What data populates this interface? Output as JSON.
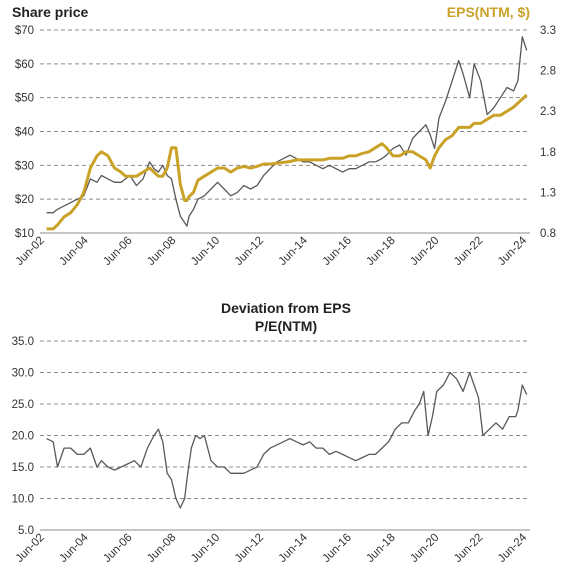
{
  "chart_data": [
    {
      "type": "line",
      "title": "Share price",
      "secondary_title": "EPS(NTM, $)",
      "ylim": [
        10,
        70
      ],
      "yticks": [
        "$10",
        "$20",
        "$30",
        "$40",
        "$50",
        "$60",
        "$70"
      ],
      "y2lim": [
        0.8,
        3.3
      ],
      "y2ticks": [
        "0.8",
        "1.3",
        "1.8",
        "2.3",
        "2.8",
        "3.3"
      ],
      "xticks": [
        "Jun-02",
        "Jun-04",
        "Jun-06",
        "Jun-08",
        "Jun-10",
        "Jun-12",
        "Jun-14",
        "Jun-16",
        "Jun-18",
        "Jun-20",
        "Jun-22",
        "Jun-24"
      ],
      "grid": true,
      "series": [
        {
          "axis": "left",
          "color": "#595959",
          "x": [
            2002.5,
            2002.8,
            2003.0,
            2003.3,
            2003.6,
            2003.9,
            2004.2,
            2004.5,
            2004.8,
            2005.0,
            2005.3,
            2005.6,
            2005.9,
            2006.1,
            2006.3,
            2006.6,
            2006.9,
            2007.2,
            2007.4,
            2007.6,
            2007.8,
            2008.0,
            2008.2,
            2008.4,
            2008.6,
            2008.8,
            2008.9,
            2009.0,
            2009.2,
            2009.4,
            2009.7,
            2010.0,
            2010.3,
            2010.6,
            2010.9,
            2011.2,
            2011.5,
            2011.8,
            2012.1,
            2012.4,
            2012.7,
            2013.0,
            2013.3,
            2013.6,
            2013.9,
            2014.2,
            2014.5,
            2014.8,
            2015.1,
            2015.4,
            2015.7,
            2016.0,
            2016.3,
            2016.6,
            2016.9,
            2017.2,
            2017.5,
            2017.8,
            2018.0,
            2018.3,
            2018.6,
            2018.9,
            2019.2,
            2019.5,
            2019.8,
            2020.0,
            2020.2,
            2020.4,
            2020.7,
            2021.0,
            2021.3,
            2021.5,
            2021.8,
            2022.0,
            2022.3,
            2022.6,
            2022.9,
            2023.2,
            2023.5,
            2023.8,
            2024.0,
            2024.2,
            2024.4
          ],
          "values": [
            16,
            16,
            17,
            18,
            19,
            20,
            21,
            26,
            25,
            27,
            26,
            25,
            25,
            26,
            27,
            24,
            26,
            31,
            29,
            28,
            30,
            27,
            26,
            20,
            15,
            13,
            12,
            15,
            17,
            20,
            21,
            23,
            25,
            23,
            21,
            22,
            24,
            23,
            24,
            27,
            29,
            31,
            32,
            33,
            32,
            31,
            31,
            30,
            29,
            30,
            29,
            28,
            29,
            29,
            30,
            31,
            31,
            32,
            33,
            35,
            36,
            33,
            38,
            40,
            42,
            39,
            35,
            44,
            49,
            55,
            61,
            57,
            50,
            60,
            55,
            45,
            47,
            50,
            53,
            52,
            55,
            68,
            64
          ]
        },
        {
          "axis": "right",
          "color": "#C9A227",
          "x": [
            2002.5,
            2002.8,
            2003.0,
            2003.3,
            2003.6,
            2003.9,
            2004.2,
            2004.5,
            2004.8,
            2005.0,
            2005.3,
            2005.6,
            2005.9,
            2006.1,
            2006.3,
            2006.6,
            2006.9,
            2007.2,
            2007.4,
            2007.6,
            2007.8,
            2008.0,
            2008.2,
            2008.4,
            2008.6,
            2008.8,
            2008.9,
            2009.0,
            2009.2,
            2009.4,
            2009.7,
            2010.0,
            2010.3,
            2010.6,
            2010.9,
            2011.2,
            2011.5,
            2011.8,
            2012.1,
            2012.4,
            2012.7,
            2013.0,
            2013.3,
            2013.6,
            2013.9,
            2014.2,
            2014.5,
            2014.8,
            2015.1,
            2015.4,
            2015.7,
            2016.0,
            2016.3,
            2016.6,
            2016.9,
            2017.2,
            2017.5,
            2017.8,
            2018.0,
            2018.3,
            2018.6,
            2018.9,
            2019.2,
            2019.5,
            2019.8,
            2020.0,
            2020.2,
            2020.4,
            2020.7,
            2021.0,
            2021.3,
            2021.5,
            2021.8,
            2022.0,
            2022.3,
            2022.6,
            2022.9,
            2023.2,
            2023.5,
            2023.8,
            2024.0,
            2024.2,
            2024.4
          ],
          "values": [
            0.85,
            0.85,
            0.9,
            1.0,
            1.05,
            1.15,
            1.3,
            1.6,
            1.75,
            1.8,
            1.75,
            1.6,
            1.55,
            1.5,
            1.5,
            1.5,
            1.55,
            1.6,
            1.55,
            1.5,
            1.5,
            1.6,
            1.85,
            1.85,
            1.4,
            1.2,
            1.2,
            1.25,
            1.3,
            1.45,
            1.5,
            1.55,
            1.6,
            1.6,
            1.55,
            1.6,
            1.62,
            1.6,
            1.62,
            1.65,
            1.65,
            1.66,
            1.67,
            1.68,
            1.7,
            1.7,
            1.7,
            1.7,
            1.7,
            1.72,
            1.72,
            1.72,
            1.75,
            1.75,
            1.78,
            1.8,
            1.85,
            1.9,
            1.85,
            1.75,
            1.75,
            1.8,
            1.8,
            1.75,
            1.7,
            1.6,
            1.75,
            1.85,
            1.95,
            2.0,
            2.1,
            2.1,
            2.1,
            2.15,
            2.15,
            2.2,
            2.25,
            2.25,
            2.3,
            2.35,
            2.4,
            2.45,
            2.5
          ]
        }
      ]
    },
    {
      "type": "line",
      "title": "Deviation from EPS",
      "subtitle": "P/E(NTM)",
      "ylim": [
        5,
        35
      ],
      "yticks": [
        "5.0",
        "10.0",
        "15.0",
        "20.0",
        "25.0",
        "30.0",
        "35.0"
      ],
      "xticks": [
        "Jun-02",
        "Jun-04",
        "Jun-06",
        "Jun-08",
        "Jun-10",
        "Jun-12",
        "Jun-14",
        "Jun-16",
        "Jun-18",
        "Jun-20",
        "Jun-22",
        "Jun-24"
      ],
      "grid": true,
      "series": [
        {
          "color": "#595959",
          "x": [
            2002.5,
            2002.8,
            2003.0,
            2003.3,
            2003.6,
            2003.9,
            2004.2,
            2004.5,
            2004.8,
            2005.0,
            2005.3,
            2005.6,
            2005.9,
            2006.2,
            2006.5,
            2006.8,
            2007.1,
            2007.4,
            2007.6,
            2007.8,
            2008.0,
            2008.2,
            2008.4,
            2008.6,
            2008.8,
            2008.9,
            2009.1,
            2009.3,
            2009.5,
            2009.7,
            2010.0,
            2010.3,
            2010.6,
            2010.9,
            2011.2,
            2011.5,
            2011.8,
            2012.1,
            2012.4,
            2012.7,
            2013.0,
            2013.3,
            2013.6,
            2013.9,
            2014.2,
            2014.5,
            2014.8,
            2015.1,
            2015.4,
            2015.7,
            2016.0,
            2016.3,
            2016.6,
            2016.9,
            2017.2,
            2017.5,
            2017.8,
            2018.1,
            2018.4,
            2018.7,
            2019.0,
            2019.3,
            2019.5,
            2019.7,
            2019.9,
            2020.1,
            2020.3,
            2020.6,
            2020.9,
            2021.2,
            2021.5,
            2021.8,
            2022.0,
            2022.2,
            2022.4,
            2022.7,
            2023.0,
            2023.3,
            2023.6,
            2023.9,
            2024.0,
            2024.2,
            2024.4
          ],
          "values": [
            19.5,
            19,
            15,
            18,
            18,
            17,
            17,
            18,
            15,
            16,
            15,
            14.5,
            15,
            15.5,
            16,
            15,
            18,
            20,
            21,
            19,
            14,
            13,
            10,
            8.5,
            10,
            13,
            18,
            20,
            19.5,
            20,
            16,
            15,
            15,
            14,
            14,
            14,
            14.5,
            15,
            17,
            18,
            18.5,
            19,
            19.5,
            19,
            18.5,
            19,
            18,
            18,
            17,
            17.5,
            17,
            16.5,
            16,
            16.5,
            17,
            17,
            18,
            19,
            21,
            22,
            22,
            24,
            25,
            27,
            20,
            23,
            27,
            28,
            30,
            29,
            27,
            30,
            28,
            26,
            20,
            21,
            22,
            21,
            23,
            23,
            24,
            28,
            26.5
          ]
        }
      ]
    }
  ]
}
